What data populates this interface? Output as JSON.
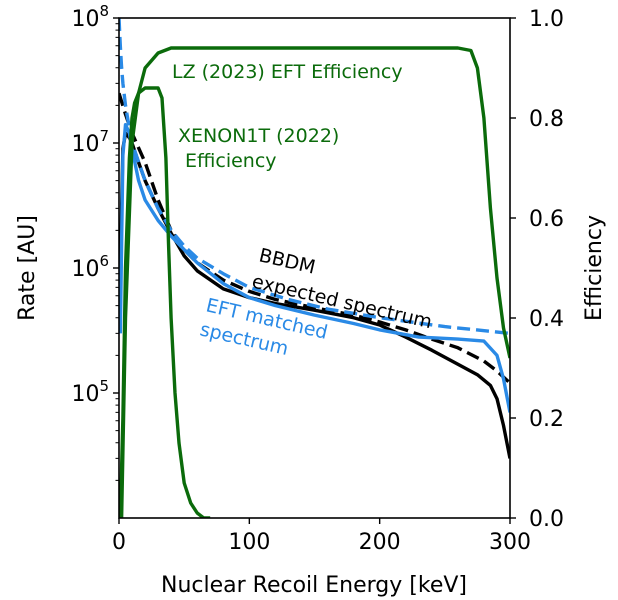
{
  "chart_data": {
    "type": "line",
    "xlabel": "Nuclear Recoil Energy [keV]",
    "ylabel": "Rate [AU]",
    "ylabel_right": "Efficiency",
    "xlim": [
      0,
      300
    ],
    "ylim": [
      10000,
      100000000
    ],
    "yscale": "log",
    "ylim_right": [
      0,
      1
    ],
    "x_ticks": [
      {
        "v": 0,
        "label": "0"
      },
      {
        "v": 100,
        "label": "100"
      },
      {
        "v": 200,
        "label": "200"
      },
      {
        "v": 300,
        "label": "300"
      }
    ],
    "y_ticks": [
      {
        "v": 100000,
        "base": "10",
        "exp": "5"
      },
      {
        "v": 1000000,
        "base": "10",
        "exp": "6"
      },
      {
        "v": 10000000,
        "base": "10",
        "exp": "7"
      },
      {
        "v": 100000000,
        "base": "10",
        "exp": "8"
      }
    ],
    "y_right_ticks": [
      {
        "v": 0,
        "label": "0.0"
      },
      {
        "v": 0.2,
        "label": "0.2"
      },
      {
        "v": 0.4,
        "label": "0.4"
      },
      {
        "v": 0.6,
        "label": "0.6"
      },
      {
        "v": 0.8,
        "label": "0.8"
      },
      {
        "v": 1.0,
        "label": "1.0"
      }
    ],
    "colors": {
      "bbdm": "#000000",
      "eft": "#2a8ae6",
      "efficiency": "#0b6b0b"
    },
    "annotations": [
      {
        "id": "lz",
        "text": "LZ (2023) EFT Efficiency",
        "color": "#0b6b0b"
      },
      {
        "id": "xenon1",
        "text": "XENON1T (2022)",
        "color": "#0b6b0b"
      },
      {
        "id": "xenon2",
        "text": "Efficiency",
        "color": "#0b6b0b"
      },
      {
        "id": "bbdm1",
        "text": "BBDM",
        "color": "#000000"
      },
      {
        "id": "bbdm2",
        "text": "expected spectrum",
        "color": "#000000"
      },
      {
        "id": "eft1",
        "text": "EFT matched",
        "color": "#2a8ae6"
      },
      {
        "id": "eft2",
        "text": "spectrum",
        "color": "#2a8ae6"
      }
    ],
    "series": [
      {
        "id": "bbdm-solid",
        "axis": "left",
        "color": "#000000",
        "dash": "solid",
        "x": [
          1,
          3,
          5,
          8,
          10,
          15,
          20,
          30,
          40,
          50,
          60,
          80,
          100,
          120,
          150,
          180,
          200,
          220,
          240,
          260,
          275,
          285,
          290,
          295,
          300
        ],
        "y": [
          1000000,
          9000000,
          12000000,
          11000000,
          10000000,
          7000000,
          5000000,
          3000000,
          1900000,
          1250000,
          950000,
          680000,
          580000,
          520000,
          460000,
          400000,
          350000,
          280000,
          220000,
          170000,
          140000,
          115000,
          90000,
          55000,
          30000
        ]
      },
      {
        "id": "bbdm-dashed",
        "axis": "left",
        "color": "#000000",
        "dash": "dashed",
        "x": [
          0,
          5,
          10,
          20,
          30,
          40,
          50,
          60,
          80,
          100,
          120,
          150,
          180,
          200,
          220,
          240,
          260,
          280,
          290,
          300
        ],
        "y": [
          25000000,
          17000000,
          12000000,
          7000000,
          3500000,
          2000000,
          1400000,
          1100000,
          800000,
          650000,
          560000,
          480000,
          420000,
          370000,
          320000,
          270000,
          230000,
          180000,
          150000,
          120000
        ]
      },
      {
        "id": "eft-solid",
        "axis": "left",
        "color": "#2a8ae6",
        "dash": "solid",
        "x": [
          1,
          3,
          5,
          8,
          10,
          15,
          20,
          30,
          40,
          50,
          60,
          80,
          100,
          120,
          150,
          180,
          200,
          230,
          260,
          280,
          290,
          295,
          300
        ],
        "y": [
          300000,
          8000000,
          14000000,
          12000000,
          9000000,
          5000000,
          3500000,
          2400000,
          1800000,
          1400000,
          1100000,
          750000,
          580000,
          500000,
          420000,
          360000,
          320000,
          280000,
          270000,
          260000,
          200000,
          130000,
          70000
        ]
      },
      {
        "id": "eft-dashed",
        "axis": "left",
        "color": "#2a8ae6",
        "dash": "dashed",
        "x": [
          0,
          1,
          2,
          3,
          5,
          8,
          10,
          20,
          30,
          40,
          50,
          60,
          80,
          100,
          130,
          160,
          200,
          250,
          300
        ],
        "y": [
          100000000,
          60000000,
          40000000,
          30000000,
          20000000,
          13000000,
          10000000,
          5000000,
          3000000,
          2000000,
          1500000,
          1200000,
          900000,
          700000,
          560000,
          470000,
          400000,
          340000,
          300000
        ]
      },
      {
        "id": "xenon-eff",
        "axis": "right",
        "color": "#0b6b0b",
        "dash": "solid",
        "x": [
          1,
          3,
          5,
          8,
          10,
          12,
          15,
          20,
          25,
          30,
          33,
          36,
          38,
          40,
          43,
          46,
          50,
          55,
          60,
          65,
          70
        ],
        "y": [
          0,
          0.2,
          0.5,
          0.72,
          0.8,
          0.83,
          0.85,
          0.86,
          0.86,
          0.86,
          0.84,
          0.72,
          0.55,
          0.4,
          0.25,
          0.15,
          0.07,
          0.03,
          0.01,
          0.0,
          0.0
        ]
      },
      {
        "id": "lz-eff",
        "axis": "right",
        "color": "#0b6b0b",
        "dash": "solid",
        "x": [
          2,
          5,
          10,
          15,
          20,
          30,
          40,
          60,
          100,
          150,
          200,
          240,
          260,
          270,
          275,
          280,
          285,
          290,
          295,
          300
        ],
        "y": [
          0,
          0.4,
          0.75,
          0.85,
          0.9,
          0.93,
          0.94,
          0.94,
          0.94,
          0.94,
          0.94,
          0.94,
          0.94,
          0.935,
          0.9,
          0.8,
          0.62,
          0.48,
          0.38,
          0.32
        ]
      }
    ]
  }
}
